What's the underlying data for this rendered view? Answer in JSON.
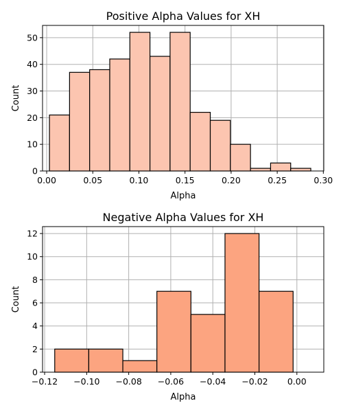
{
  "chart_data": [
    {
      "type": "bar",
      "title": "Positive Alpha Values for XH",
      "xlabel": "Alpha",
      "ylabel": "Count",
      "bar_color": "#fcc5b0",
      "grid": true,
      "xlim": [
        -0.0045,
        0.3005
      ],
      "ylim": [
        0,
        54.6
      ],
      "xticks": [
        0.0,
        0.05,
        0.1,
        0.15,
        0.2,
        0.25,
        0.3
      ],
      "xtick_labels": [
        "0.00",
        "0.05",
        "0.10",
        "0.15",
        "0.20",
        "0.25",
        "0.30"
      ],
      "yticks": [
        0,
        10,
        20,
        30,
        40,
        50
      ],
      "ytick_labels": [
        "0",
        "10",
        "20",
        "30",
        "40",
        "50"
      ],
      "bin_edges": [
        0.003,
        0.0248,
        0.0466,
        0.0684,
        0.0902,
        0.112,
        0.1338,
        0.1556,
        0.1774,
        0.1992,
        0.221,
        0.2428,
        0.2646,
        0.2864
      ],
      "values": [
        21,
        37,
        38,
        42,
        52,
        43,
        52,
        22,
        19,
        10,
        1,
        3,
        1
      ]
    },
    {
      "type": "bar",
      "title": "Negative Alpha Values for XH",
      "xlabel": "Alpha",
      "ylabel": "Count",
      "bar_color": "#fca480",
      "grid": true,
      "xlim": [
        -0.121,
        0.0128
      ],
      "ylim": [
        0,
        12.6
      ],
      "xticks": [
        -0.12,
        -0.1,
        -0.08,
        -0.06,
        -0.04,
        -0.02,
        0.0
      ],
      "xtick_labels": [
        "−0.12",
        "−0.10",
        "−0.08",
        "−0.06",
        "−0.04",
        "−0.02",
        "0.00"
      ],
      "yticks": [
        0,
        2,
        4,
        6,
        8,
        10,
        12
      ],
      "ytick_labels": [
        "0",
        "2",
        "4",
        "6",
        "8",
        "10",
        "12"
      ],
      "bin_edges": [
        -0.1152,
        -0.099,
        -0.0828,
        -0.0666,
        -0.0504,
        -0.0342,
        -0.018,
        -0.0018
      ],
      "values": [
        2,
        2,
        1,
        7,
        5,
        12,
        7
      ]
    }
  ]
}
